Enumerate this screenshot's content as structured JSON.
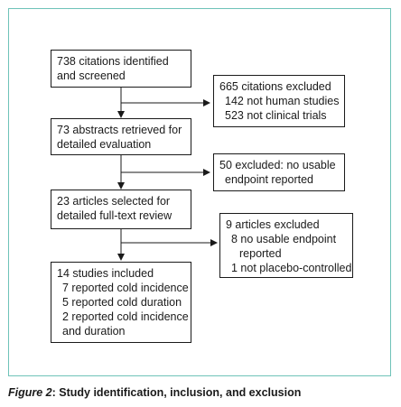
{
  "boxes": {
    "identified": {
      "lines": [
        "738 citations identified",
        "and screened"
      ]
    },
    "excluded1": {
      "lines": [
        "665 citations excluded",
        "142 not human studies",
        "523 not clinical trials"
      ]
    },
    "abstracts": {
      "lines": [
        "73 abstracts retrieved for",
        "detailed evaluation"
      ]
    },
    "excluded2": {
      "lines": [
        "50 excluded: no usable",
        "endpoint reported"
      ]
    },
    "articles": {
      "lines": [
        "23 articles selected for",
        "detailed full-text review"
      ]
    },
    "excluded3": {
      "lines": [
        "9 articles excluded",
        "8 no usable endpoint",
        "reported",
        "1 not placebo-controlled"
      ]
    },
    "included": {
      "lines": [
        "14 studies included",
        "7 reported cold incidence",
        "5 reported cold duration",
        "2 reported cold incidence",
        "and duration"
      ]
    }
  },
  "caption": {
    "label": "Figure 2",
    "text": ": Study identification, inclusion, and exclusion"
  },
  "colors": {
    "frame": "#6fc3b8",
    "ink": "#1a1a1a"
  }
}
